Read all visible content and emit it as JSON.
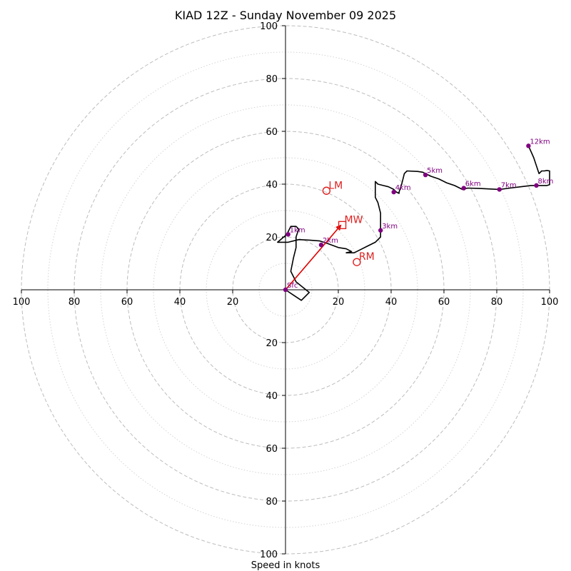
{
  "chart_data": {
    "type": "hodograph",
    "title": "KIAD 12Z - Sunday November 09 2025",
    "xlabel": "Speed in knots",
    "range_max": 100,
    "ring_major": [
      20,
      40,
      60,
      80,
      100
    ],
    "ring_minor": [
      10,
      30,
      50,
      70,
      90
    ],
    "tick_values": [
      20,
      40,
      60,
      80,
      100
    ],
    "tick_labels": [
      "20",
      "40",
      "60",
      "80",
      "100"
    ],
    "colors": {
      "hodograph": "#000000",
      "height_marker": "#800080",
      "motion": "#e02020",
      "arrow": "#e00000"
    },
    "hodograph": [
      [
        0,
        0
      ],
      [
        3,
        -2
      ],
      [
        6,
        -4
      ],
      [
        9,
        -1
      ],
      [
        4,
        3
      ],
      [
        2,
        7
      ],
      [
        3,
        12
      ],
      [
        4,
        16
      ],
      [
        4,
        20
      ],
      [
        5,
        23
      ],
      [
        4,
        24
      ],
      [
        2,
        24
      ],
      [
        1,
        22
      ],
      [
        0.5,
        21
      ],
      [
        -3,
        18
      ],
      [
        -3,
        18
      ],
      [
        1,
        18
      ],
      [
        5,
        19
      ],
      [
        9,
        18.8
      ],
      [
        13,
        18.5
      ],
      [
        16,
        17.5
      ],
      [
        20,
        16
      ],
      [
        23,
        15.5
      ],
      [
        25,
        14.5
      ],
      [
        23,
        14
      ],
      [
        26,
        14
      ],
      [
        31,
        16.5
      ],
      [
        34,
        18
      ],
      [
        36,
        20
      ],
      [
        36,
        22
      ],
      [
        36,
        24
      ],
      [
        36,
        26
      ],
      [
        36,
        29
      ],
      [
        35,
        33
      ],
      [
        34,
        35
      ],
      [
        34,
        38
      ],
      [
        34,
        40
      ],
      [
        34,
        41
      ],
      [
        35,
        40
      ],
      [
        37,
        39.5
      ],
      [
        39,
        39
      ],
      [
        41,
        38
      ],
      [
        42,
        37
      ],
      [
        43,
        36.5
      ],
      [
        43,
        37
      ],
      [
        44,
        40
      ],
      [
        45,
        44
      ],
      [
        46,
        45
      ],
      [
        50,
        44.8
      ],
      [
        52,
        44.5
      ],
      [
        55,
        43
      ],
      [
        58,
        42
      ],
      [
        61,
        40.5
      ],
      [
        64,
        39.5
      ],
      [
        67,
        38
      ],
      [
        69,
        38.5
      ],
      [
        73,
        38.4
      ],
      [
        77,
        38.2
      ],
      [
        81,
        38
      ],
      [
        85,
        38.5
      ],
      [
        89,
        39
      ],
      [
        93,
        39.5
      ],
      [
        96,
        39.5
      ],
      [
        99,
        39.5
      ],
      [
        100,
        39.8
      ],
      [
        100,
        39.8
      ],
      [
        100,
        45
      ],
      [
        99,
        45.2
      ],
      [
        98,
        45
      ],
      [
        97,
        45
      ],
      [
        96,
        44
      ],
      [
        94,
        50
      ],
      [
        92,
        54.5
      ]
    ],
    "height_markers": [
      {
        "label": "Sfc",
        "u": 0,
        "v": 0
      },
      {
        "label": "1km",
        "u": 1,
        "v": 21
      },
      {
        "label": "2km",
        "u": 13.5,
        "v": 17
      },
      {
        "label": "3km",
        "u": 36,
        "v": 22.5
      },
      {
        "label": "4km",
        "u": 41,
        "v": 37
      },
      {
        "label": "5km",
        "u": 53,
        "v": 43.5
      },
      {
        "label": "6km",
        "u": 67.5,
        "v": 38.5
      },
      {
        "label": "7km",
        "u": 81,
        "v": 38
      },
      {
        "label": "8km",
        "u": 95,
        "v": 39.5
      },
      {
        "label": "12km",
        "u": 92,
        "v": 54.5
      }
    ],
    "storm_motion": [
      {
        "label": "MW",
        "u": 21.5,
        "v": 24.5,
        "marker": "square"
      },
      {
        "label": "LM",
        "u": 15.5,
        "v": 37.5,
        "marker": "circle"
      },
      {
        "label": "RM",
        "u": 27,
        "v": 10.5,
        "marker": "circle"
      }
    ],
    "arrow": {
      "from": [
        0,
        0
      ],
      "to": [
        21,
        24.5
      ]
    }
  }
}
